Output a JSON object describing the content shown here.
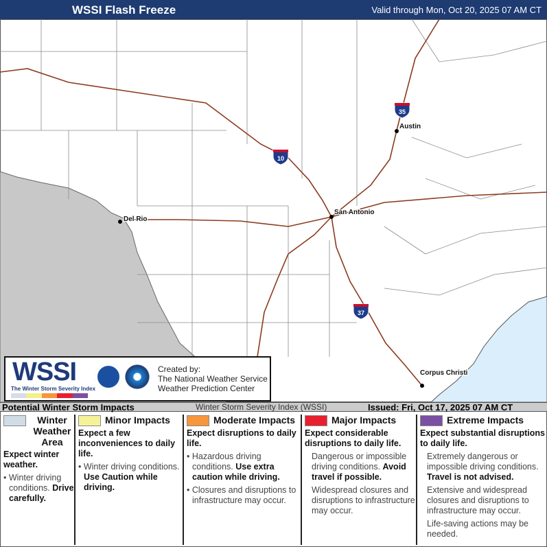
{
  "header": {
    "title": "WSSI Flash Freeze",
    "valid": "Valid through Mon, Oct 20, 2025 07 AM CT"
  },
  "map": {
    "cities": [
      {
        "name": "Austin"
      },
      {
        "name": "San Antonio"
      },
      {
        "name": "Del Rio"
      },
      {
        "name": "Corpus Christi"
      }
    ],
    "interstates": [
      "10",
      "35",
      "37"
    ],
    "colors": {
      "mexico": "#c8c8c8",
      "gulf": "#dbeefb",
      "roads": "#8b3a1e",
      "counties": "#8a8a8a"
    }
  },
  "logo": {
    "name": "WSSI",
    "subtitle": "The Winter Storm Severity Index",
    "created_by": "Created by:",
    "org1": "The National Weather Service",
    "org2": "Weather Prediction Center",
    "bar_colors": [
      "#d8dce8",
      "#f3f08c",
      "#f7963a",
      "#e8202e",
      "#7b4fa3"
    ]
  },
  "info": {
    "left": "Potential Winter Storm Impacts",
    "center": "Winter Storm Severity Index (WSSI)",
    "issued": "Issued: Fri, Oct 17, 2025 07 AM CT"
  },
  "legend": [
    {
      "title": "Winter Weather Area",
      "color": "#d0dce6",
      "lead": "Expect winter weather.",
      "b1": "Winter driving conditions.",
      "b1b": "Drive carefully."
    },
    {
      "title": "Minor Impacts",
      "color": "#f6f29a",
      "lead": "Expect a few inconveniences to daily life.",
      "b1": "Winter driving conditions.",
      "b1b": "Use Caution while driving."
    },
    {
      "title": "Moderate Impacts",
      "color": "#f7963a",
      "lead": "Expect disruptions to daily life.",
      "b1": "Hazardous driving conditions.",
      "b1b": "Use extra caution while driving.",
      "b2": "Closures and disruptions to infrastructure may occur."
    },
    {
      "title": "Major Impacts",
      "color": "#e8202e",
      "lead": "Expect considerable disruptions to daily life.",
      "b1": "Dangerous or impossible driving conditions.",
      "b1b": "Avoid travel if possible.",
      "b2": "Widespread closures and disruptions to infrastructure may occur."
    },
    {
      "title": "Extreme Impacts",
      "color": "#7b4fa3",
      "lead": "Expect substantial disruptions to daily life.",
      "b1": "Extremely dangerous or impossible driving conditions.",
      "b1b": "Travel is not advised.",
      "b2": "Extensive and widespread closures and disruptions to infrastructure may occur.",
      "b3": "Life-saving actions may be needed."
    }
  ]
}
